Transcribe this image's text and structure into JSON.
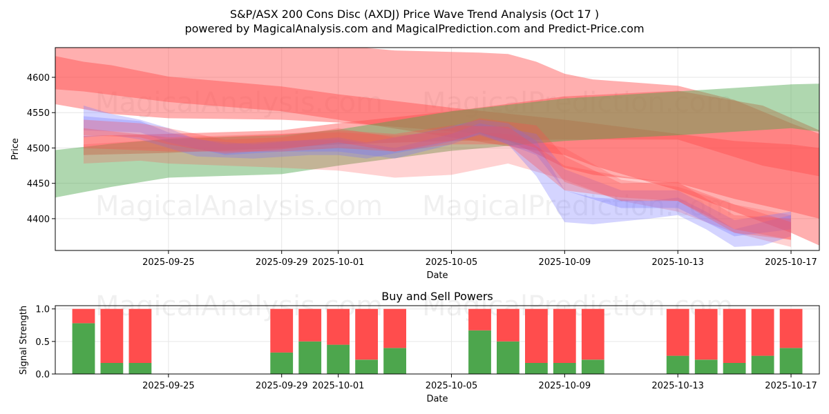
{
  "title_line1": "S&P/ASX 200 Cons Disc (AXDJ) Price Wave Trend Analysis (Oct 17 )",
  "title_line2": "powered by MagicalAnalysis.com and MagicalPrediction.com and Predict-Price.com",
  "watermarks": [
    "MagicalAnalysis.com",
    "MagicalPrediction.com"
  ],
  "colors": {
    "red": "#ff4d4d",
    "green": "#4da64d",
    "blue": "#6f6fff",
    "grid": "#e6e6e6"
  },
  "chart_data": [
    {
      "type": "area",
      "title": "",
      "xlabel": "Date",
      "ylabel": "Price",
      "xlim": [
        "2025-09-21",
        "2025-10-18"
      ],
      "ylim": [
        4355,
        4642
      ],
      "grid": true,
      "x_ticks": [
        "2025-09-25",
        "2025-09-29",
        "2025-10-01",
        "2025-10-05",
        "2025-10-09",
        "2025-10-13",
        "2025-10-17"
      ],
      "y_ticks": [
        4400,
        4450,
        4500,
        4550,
        4600
      ],
      "bands": [
        {
          "color": "red",
          "opacity": 0.45,
          "x": [
            "2025-09-21",
            "2025-09-23",
            "2025-09-25",
            "2025-09-29",
            "2025-10-01",
            "2025-10-03",
            "2025-10-06",
            "2025-10-07",
            "2025-10-08",
            "2025-10-09",
            "2025-10-10",
            "2025-10-13",
            "2025-10-15",
            "2025-10-17",
            "2025-10-18"
          ],
          "upper": [
            4648,
            4652,
            4652,
            4650,
            4645,
            4638,
            4635,
            4633,
            4622,
            4605,
            4597,
            4588,
            4568,
            4535,
            4520
          ],
          "lower": [
            4562,
            4548,
            4542,
            4540,
            4536,
            4530,
            4520,
            4510,
            4492,
            4472,
            4462,
            4450,
            4428,
            4410,
            4400
          ]
        },
        {
          "color": "red",
          "opacity": 0.45,
          "x": [
            "2025-09-21",
            "2025-09-22",
            "2025-09-23",
            "2025-09-25",
            "2025-09-29",
            "2025-10-01",
            "2025-10-05",
            "2025-10-09",
            "2025-10-10",
            "2025-10-13",
            "2025-10-15",
            "2025-10-17",
            "2025-10-18"
          ],
          "upper": [
            4630,
            4622,
            4617,
            4601,
            4587,
            4576,
            4557,
            4540,
            4535,
            4520,
            4510,
            4505,
            4500
          ],
          "lower": [
            4583,
            4580,
            4575,
            4565,
            4552,
            4540,
            4515,
            4490,
            4475,
            4440,
            4410,
            4380,
            4362
          ]
        },
        {
          "color": "red",
          "opacity": 0.45,
          "x": [
            "2025-09-22",
            "2025-09-25",
            "2025-09-29",
            "2025-10-01",
            "2025-10-05",
            "2025-10-09",
            "2025-10-13",
            "2025-10-16",
            "2025-10-18"
          ],
          "upper": [
            4517,
            4520,
            4525,
            4535,
            4552,
            4573,
            4581,
            4560,
            4525
          ],
          "lower": [
            4490,
            4493,
            4500,
            4505,
            4510,
            4512,
            4512,
            4475,
            4460
          ]
        },
        {
          "color": "green",
          "opacity": 0.45,
          "x": [
            "2025-09-21",
            "2025-09-23",
            "2025-09-25",
            "2025-09-29",
            "2025-10-01",
            "2025-10-05",
            "2025-10-09",
            "2025-10-13",
            "2025-10-17",
            "2025-10-18"
          ],
          "upper": [
            4497,
            4506,
            4513,
            4518,
            4526,
            4552,
            4570,
            4580,
            4590,
            4591
          ],
          "lower": [
            4430,
            4445,
            4458,
            4463,
            4475,
            4496,
            4510,
            4518,
            4528,
            4523
          ]
        },
        {
          "color": "red",
          "opacity": 0.25,
          "x": [
            "2025-09-22",
            "2025-09-24",
            "2025-09-25",
            "2025-09-29",
            "2025-10-01",
            "2025-10-03",
            "2025-10-05",
            "2025-10-07",
            "2025-10-09",
            "2025-10-11",
            "2025-10-13",
            "2025-10-15",
            "2025-10-17"
          ],
          "upper": [
            4505,
            4510,
            4512,
            4520,
            4522,
            4518,
            4522,
            4520,
            4500,
            4455,
            4445,
            4420,
            4405
          ],
          "lower": [
            4478,
            4482,
            4478,
            4472,
            4468,
            4458,
            4462,
            4478,
            4455,
            4425,
            4410,
            4380,
            4360
          ]
        },
        {
          "color": "blue",
          "opacity": 0.3,
          "x": [
            "2025-09-22",
            "2025-09-23",
            "2025-09-24",
            "2025-09-25",
            "2025-09-26",
            "2025-09-28",
            "2025-09-30",
            "2025-10-01",
            "2025-10-02",
            "2025-10-04",
            "2025-10-06",
            "2025-10-07",
            "2025-10-08",
            "2025-10-09",
            "2025-10-10",
            "2025-10-12",
            "2025-10-13",
            "2025-10-14",
            "2025-10-15",
            "2025-10-16",
            "2025-10-17"
          ],
          "upper": [
            4560,
            4548,
            4540,
            4528,
            4512,
            4505,
            4512,
            4515,
            4508,
            4522,
            4540,
            4535,
            4510,
            4440,
            4430,
            4425,
            4430,
            4410,
            4385,
            4395,
            4405
          ],
          "lower": [
            4515,
            4518,
            4512,
            4500,
            4488,
            4485,
            4490,
            4490,
            4485,
            4500,
            4518,
            4505,
            4460,
            4395,
            4392,
            4400,
            4405,
            4385,
            4360,
            4362,
            4375
          ]
        },
        {
          "color": "blue",
          "opacity": 0.3,
          "x": [
            "2025-09-22",
            "2025-09-24",
            "2025-09-25",
            "2025-09-27",
            "2025-09-29",
            "2025-10-01",
            "2025-10-03",
            "2025-10-05",
            "2025-10-06",
            "2025-10-08",
            "2025-10-09",
            "2025-10-11",
            "2025-10-13",
            "2025-10-15",
            "2025-10-17"
          ],
          "upper": [
            4545,
            4538,
            4522,
            4505,
            4510,
            4512,
            4500,
            4520,
            4535,
            4520,
            4470,
            4440,
            4440,
            4398,
            4410
          ],
          "lower": [
            4525,
            4522,
            4508,
            4490,
            4495,
            4495,
            4485,
            4505,
            4520,
            4490,
            4440,
            4415,
            4415,
            4375,
            4385
          ]
        },
        {
          "color": "red",
          "opacity": 0.3,
          "x": [
            "2025-09-22",
            "2025-09-24",
            "2025-09-25",
            "2025-09-27",
            "2025-09-29",
            "2025-10-01",
            "2025-10-03",
            "2025-10-05",
            "2025-10-06",
            "2025-10-08",
            "2025-10-09",
            "2025-10-11",
            "2025-10-13",
            "2025-10-15",
            "2025-10-17"
          ],
          "upper": [
            4540,
            4535,
            4528,
            4512,
            4515,
            4528,
            4515,
            4528,
            4542,
            4532,
            4488,
            4450,
            4452,
            4405,
            4400
          ],
          "lower": [
            4518,
            4515,
            4505,
            4492,
            4498,
            4508,
            4495,
            4510,
            4522,
            4500,
            4452,
            4425,
            4425,
            4380,
            4370
          ]
        },
        {
          "color": "red",
          "opacity": 0.3,
          "x": [
            "2025-09-22",
            "2025-09-25",
            "2025-09-29",
            "2025-10-01",
            "2025-10-03",
            "2025-10-05",
            "2025-10-07",
            "2025-10-09",
            "2025-10-11",
            "2025-10-13",
            "2025-10-15",
            "2025-10-17"
          ],
          "upper": [
            4528,
            4515,
            4520,
            4525,
            4520,
            4532,
            4530,
            4475,
            4460,
            4450,
            4420,
            4395
          ],
          "lower": [
            4500,
            4495,
            4495,
            4500,
            4495,
            4505,
            4505,
            4440,
            4430,
            4425,
            4385,
            4370
          ]
        }
      ]
    },
    {
      "type": "bar",
      "title": "Buy and Sell Powers",
      "xlabel": "Date",
      "ylabel": "Signal Strength",
      "xlim": [
        "2025-09-21",
        "2025-10-18"
      ],
      "ylim": [
        0,
        1.05
      ],
      "grid": true,
      "x_ticks": [
        "2025-09-25",
        "2025-09-29",
        "2025-10-01",
        "2025-10-05",
        "2025-10-09",
        "2025-10-13",
        "2025-10-17"
      ],
      "y_ticks": [
        "0.0",
        "0.5",
        "1.0"
      ],
      "categories": [
        "2025-09-22",
        "2025-09-23",
        "2025-09-24",
        "2025-09-29",
        "2025-09-30",
        "2025-10-01",
        "2025-10-02",
        "2025-10-03",
        "2025-10-06",
        "2025-10-07",
        "2025-10-08",
        "2025-10-09",
        "2025-10-10",
        "2025-10-13",
        "2025-10-14",
        "2025-10-15",
        "2025-10-16",
        "2025-10-17"
      ],
      "series": [
        {
          "name": "Buy",
          "color": "green",
          "values": [
            0.78,
            0.17,
            0.17,
            0.33,
            0.5,
            0.45,
            0.22,
            0.4,
            0.67,
            0.5,
            0.17,
            0.17,
            0.22,
            0.28,
            0.22,
            0.17,
            0.28,
            0.4
          ]
        },
        {
          "name": "Sell",
          "color": "red",
          "values": [
            0.22,
            0.83,
            0.83,
            0.67,
            0.5,
            0.55,
            0.78,
            0.6,
            0.33,
            0.5,
            0.83,
            0.83,
            0.78,
            0.72,
            0.78,
            0.83,
            0.72,
            0.6
          ]
        }
      ]
    }
  ]
}
